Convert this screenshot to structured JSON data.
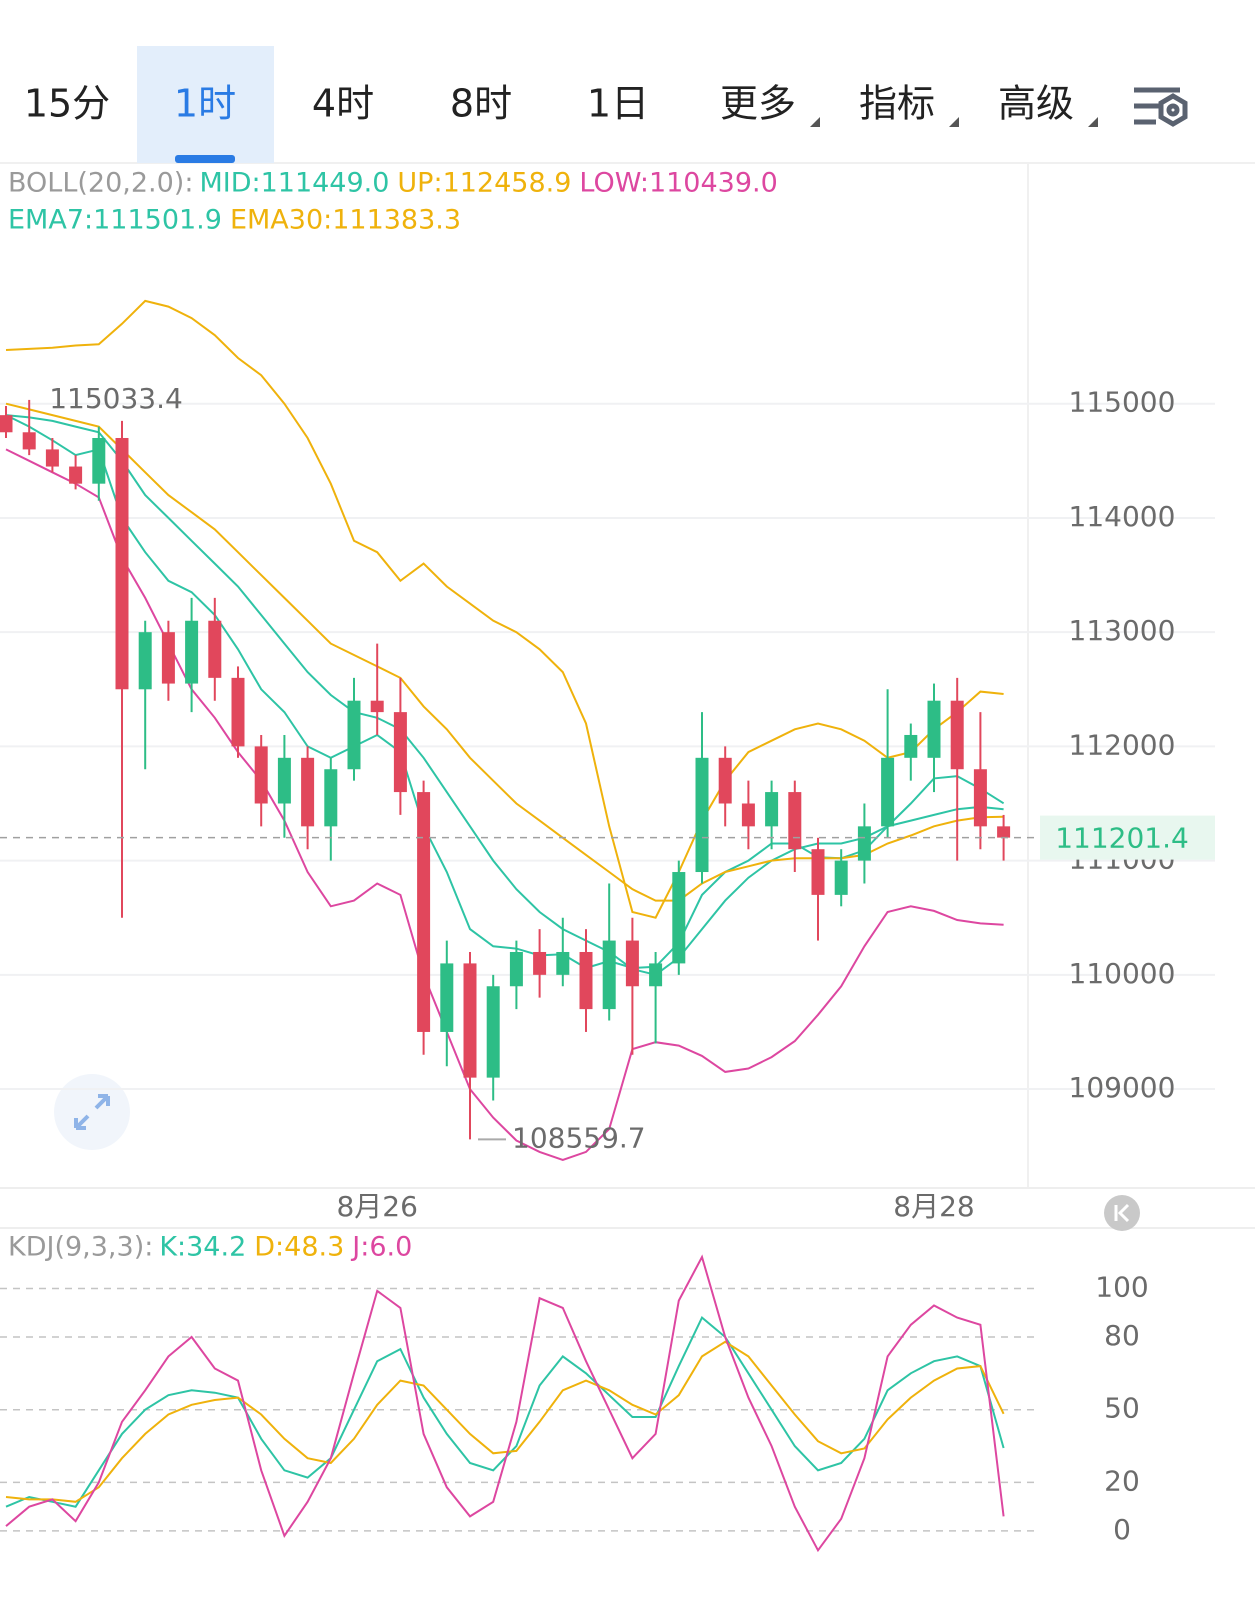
{
  "tabs": [
    {
      "label": "15分"
    },
    {
      "label": "1时",
      "active": true
    },
    {
      "label": "4时"
    },
    {
      "label": "8时"
    },
    {
      "label": "1日"
    },
    {
      "label": "更多",
      "dropdown": true
    },
    {
      "label": "指标",
      "dropdown": true
    },
    {
      "label": "高级",
      "dropdown": true
    }
  ],
  "chart_data": [
    {
      "type": "candlestick",
      "up_color": "#2dbd86",
      "down_color": "#e1475c",
      "categories": [
        null,
        null,
        null,
        null,
        null,
        null,
        null,
        null,
        null,
        null,
        null,
        null,
        null,
        null,
        null,
        null,
        "8月26",
        null,
        null,
        null,
        null,
        null,
        null,
        null,
        null,
        null,
        null,
        null,
        null,
        null,
        null,
        null,
        null,
        null,
        null,
        null,
        null,
        null,
        null,
        null,
        "8月28",
        null,
        null,
        null
      ],
      "open": [
        114900,
        114750,
        114600,
        114450,
        114300,
        114700,
        112500,
        113000,
        112550,
        113100,
        112600,
        112000,
        111500,
        111900,
        111300,
        111800,
        112400,
        112300,
        111600,
        109500,
        110100,
        109100,
        109900,
        110200,
        110000,
        110200,
        109700,
        110300,
        109900,
        110100,
        110900,
        111900,
        111500,
        111300,
        111600,
        111100,
        110700,
        111000,
        111300,
        111900,
        111900,
        112400,
        111800,
        111300
      ],
      "high": [
        114980,
        115033.4,
        114700,
        114550,
        114800,
        114850,
        113100,
        113100,
        113300,
        113300,
        112700,
        112100,
        112100,
        112000,
        111900,
        112600,
        112900,
        112600,
        111700,
        110300,
        110200,
        110000,
        110300,
        110400,
        110500,
        110400,
        110800,
        110500,
        110200,
        111000,
        112300,
        112000,
        111700,
        111700,
        111700,
        111200,
        111100,
        111500,
        112500,
        112200,
        112550,
        112600,
        112300,
        111400
      ],
      "low": [
        114700,
        114550,
        114400,
        114250,
        114150,
        110500,
        111800,
        112400,
        112300,
        112400,
        111900,
        111300,
        111200,
        111100,
        111000,
        111700,
        112100,
        111400,
        109300,
        109200,
        108559.7,
        108900,
        109700,
        109800,
        109900,
        109500,
        109600,
        109300,
        109400,
        110000,
        110800,
        111300,
        111100,
        111100,
        110900,
        110300,
        110600,
        110800,
        111200,
        111700,
        111600,
        111000,
        111100,
        111000
      ],
      "close": [
        114750,
        114600,
        114450,
        114300,
        114700,
        112500,
        113000,
        112550,
        113100,
        112600,
        112000,
        111500,
        111900,
        111300,
        111800,
        112400,
        112300,
        111600,
        109500,
        110100,
        109100,
        109900,
        110200,
        110000,
        110200,
        109700,
        110300,
        109900,
        110100,
        110900,
        111900,
        111500,
        111300,
        111600,
        111100,
        110700,
        111000,
        111300,
        111900,
        112100,
        112400,
        111800,
        111300,
        111201.4
      ],
      "boll": {
        "label": "BOLL(20,2.0):",
        "lines": [
          {
            "label": "MID:111449.0",
            "color": "#2ec4a5",
            "values": [
              114900,
              114880,
              114850,
              114800,
              114750,
              114500,
              114200,
              114000,
              113800,
              113600,
              113400,
              113150,
              112900,
              112650,
              112450,
              112300,
              112250,
              112150,
              111900,
              111600,
              111300,
              111000,
              110750,
              110550,
              110400,
              110300,
              110200,
              110050,
              110000,
              110150,
              110400,
              110650,
              110850,
              111000,
              111100,
              111150,
              111150,
              111200,
              111300,
              111350,
              111400,
              111450,
              111470,
              111449.0
            ]
          },
          {
            "label": "UP:112458.9",
            "color": "#efb20c",
            "values": [
              115470,
              115480,
              115490,
              115510,
              115520,
              115700,
              115900,
              115850,
              115750,
              115600,
              115400,
              115250,
              115000,
              114700,
              114300,
              113800,
              113700,
              113450,
              113600,
              113400,
              113250,
              113100,
              113000,
              112850,
              112650,
              112200,
              111300,
              110550,
              110500,
              110900,
              111350,
              111700,
              111950,
              112050,
              112150,
              112200,
              112150,
              112050,
              111900,
              111950,
              112150,
              112300,
              112480,
              112458.9
            ]
          },
          {
            "label": "LOW:110439.0",
            "color": "#dd47a0",
            "values": [
              114600,
              114500,
              114400,
              114300,
              114180,
              113650,
              113300,
              112900,
              112500,
              112250,
              111950,
              111700,
              111350,
              110900,
              110600,
              110650,
              110800,
              110700,
              110000,
              109500,
              109000,
              108750,
              108550,
              108450,
              108380,
              108450,
              108650,
              109350,
              109410,
              109380,
              109290,
              109150,
              109180,
              109280,
              109420,
              109650,
              109900,
              110250,
              110550,
              110600,
              110560,
              110480,
              110450,
              110439.0
            ]
          }
        ]
      },
      "ema": {
        "lines": [
          {
            "label": "EMA7:111501.9",
            "color": "#2ec4a5",
            "values": [
              114900,
              114800,
              114680,
              114550,
              114600,
              114000,
              113700,
              113450,
              113350,
              113150,
              112850,
              112500,
              112300,
              112000,
              111900,
              112000,
              112100,
              111950,
              111300,
              110900,
              110400,
              110250,
              110230,
              110170,
              110180,
              110060,
              110120,
              110060,
              110070,
              110280,
              110700,
              110900,
              111000,
              111150,
              111150,
              111030,
              111020,
              111090,
              111300,
              111500,
              111720,
              111740,
              111630,
              111501.9
            ]
          },
          {
            "label": "EMA30:111383.3",
            "color": "#efb20c",
            "values": [
              115000,
              114950,
              114900,
              114850,
              114800,
              114600,
              114400,
              114200,
              114050,
              113900,
              113700,
              113500,
              113300,
              113100,
              112900,
              112800,
              112700,
              112600,
              112350,
              112150,
              111900,
              111700,
              111500,
              111350,
              111200,
              111050,
              110900,
              110750,
              110650,
              110650,
              110800,
              110900,
              110950,
              111000,
              111020,
              111020,
              111020,
              111050,
              111150,
              111220,
              111300,
              111350,
              111380,
              111383.3
            ]
          }
        ]
      },
      "max_mark": 115033.4,
      "min_mark": 108559.7,
      "last_price": 111201.4,
      "ylim": [
        108160,
        117090
      ],
      "yticks": [
        109000,
        110000,
        111000,
        112000,
        113000,
        114000,
        115000
      ],
      "grid": true
    },
    {
      "type": "line",
      "label": "KDJ(9,3,3):",
      "series": [
        {
          "name": "K:34.2",
          "color": "#2ec4a5",
          "values": [
            10,
            14,
            12,
            10,
            25,
            40,
            50,
            56,
            58,
            57,
            55,
            38,
            25,
            22,
            30,
            50,
            70,
            75,
            55,
            40,
            28,
            25,
            35,
            60,
            72,
            65,
            56,
            47,
            47,
            68,
            88,
            80,
            65,
            50,
            35,
            25,
            28,
            38,
            58,
            65,
            70,
            72,
            68,
            34.2
          ]
        },
        {
          "name": "D:48.3",
          "color": "#efb20c",
          "values": [
            14,
            13,
            13,
            12,
            18,
            30,
            40,
            48,
            52,
            54,
            55,
            48,
            38,
            30,
            28,
            38,
            52,
            62,
            60,
            50,
            40,
            32,
            33,
            45,
            58,
            62,
            58,
            52,
            48,
            56,
            72,
            78,
            72,
            60,
            48,
            37,
            32,
            34,
            46,
            55,
            62,
            67,
            68,
            48.3
          ]
        },
        {
          "name": "J:6.0",
          "color": "#dd47a0",
          "values": [
            2,
            10,
            13,
            4,
            20,
            45,
            58,
            72,
            80,
            67,
            62,
            25,
            -2,
            12,
            30,
            65,
            99,
            92,
            40,
            18,
            6,
            12,
            45,
            96,
            92,
            70,
            50,
            30,
            40,
            95,
            113,
            80,
            55,
            35,
            10,
            -8,
            5,
            30,
            72,
            85,
            93,
            88,
            85,
            6.0
          ]
        }
      ],
      "ylim": [
        -12,
        120
      ],
      "yticks": [
        0,
        20,
        50,
        80,
        100
      ],
      "grid": true
    }
  ]
}
